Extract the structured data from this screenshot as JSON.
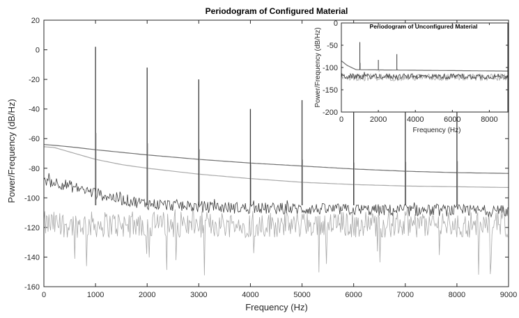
{
  "chart_data": [
    {
      "type": "line",
      "title": "Periodogram of Configured Material",
      "xlabel": "Frequency (Hz)",
      "ylabel": "Power/Frequency (dB/Hz)",
      "xlim": [
        0,
        9000
      ],
      "ylim": [
        -160,
        20
      ],
      "x_ticks": [
        0,
        1000,
        2000,
        3000,
        4000,
        5000,
        6000,
        7000,
        8000,
        9000
      ],
      "y_ticks": [
        20,
        0,
        -20,
        -40,
        -60,
        -80,
        -100,
        -120,
        -140,
        -160
      ],
      "grid": false,
      "colors": {
        "dark": "#3a3a3a",
        "mid": "#6e6e6e",
        "light": "#a8a8a8"
      },
      "series": [
        {
          "style": "smooth-upper",
          "x": [
            0,
            200,
            500,
            1000,
            2000,
            3000,
            4000,
            5000,
            6000,
            7000,
            8000,
            9000
          ],
          "values": [
            -64,
            -64.5,
            -65.5,
            -67.5,
            -71,
            -74,
            -76.5,
            -78.5,
            -80.5,
            -82,
            -83,
            -83.5
          ]
        },
        {
          "style": "smooth-lower",
          "x": [
            0,
            200,
            500,
            1000,
            1500,
            2000,
            3000,
            4000,
            5000,
            6000,
            7000,
            8000,
            9000
          ],
          "values": [
            -65.5,
            -66,
            -69,
            -74,
            -77.5,
            -80,
            -84,
            -87,
            -89.5,
            -91,
            -92,
            -92.5,
            -93
          ]
        },
        {
          "style": "noisy-dark",
          "x": [
            0,
            100,
            300,
            600,
            1000,
            1500,
            2000,
            2500,
            3000,
            4000,
            5000,
            6000,
            7000,
            8000,
            9000
          ],
          "values": [
            -88,
            -89,
            -90,
            -93,
            -97,
            -101,
            -104,
            -105,
            -106,
            -107,
            -107.5,
            -108,
            -108.5,
            -108.5,
            -109
          ],
          "noise_db": 4
        },
        {
          "style": "noisy-light",
          "x": [
            0,
            9000
          ],
          "values": [
            -118,
            -118
          ],
          "noise_db": 9,
          "dips_to": -153
        }
      ],
      "peaks": {
        "x": [
          1000,
          2000,
          3000,
          4000,
          5000,
          6000,
          7000,
          8000
        ],
        "values": [
          2,
          -12,
          -20,
          -40,
          -34,
          -38,
          -37,
          -36
        ]
      }
    },
    {
      "type": "line",
      "title": "Periodogram of Unconfigured Material",
      "xlabel": "Frequency (Hz)",
      "ylabel": "Power/Frequency (dB/Hz)",
      "xlim": [
        0,
        9000
      ],
      "ylim": [
        -200,
        0
      ],
      "x_ticks": [
        0,
        2000,
        4000,
        6000,
        8000
      ],
      "y_ticks": [
        0,
        -50,
        -100,
        -150,
        -200
      ],
      "grid": false,
      "series": [
        {
          "style": "smooth-upper",
          "x": [
            0,
            300,
            800,
            9000
          ],
          "values": [
            -85,
            -95,
            -105,
            -108
          ]
        },
        {
          "style": "noisy-dark",
          "x": [
            0,
            9000
          ],
          "values": [
            -120,
            -120
          ],
          "noise_db": 6
        },
        {
          "style": "noisy-light",
          "x": [
            0,
            9000
          ],
          "values": [
            -122,
            -122
          ],
          "noise_db": 8
        }
      ],
      "peaks": {
        "x": [
          1000,
          2000,
          3000
        ],
        "values": [
          -43,
          -83,
          -70
        ]
      }
    }
  ]
}
